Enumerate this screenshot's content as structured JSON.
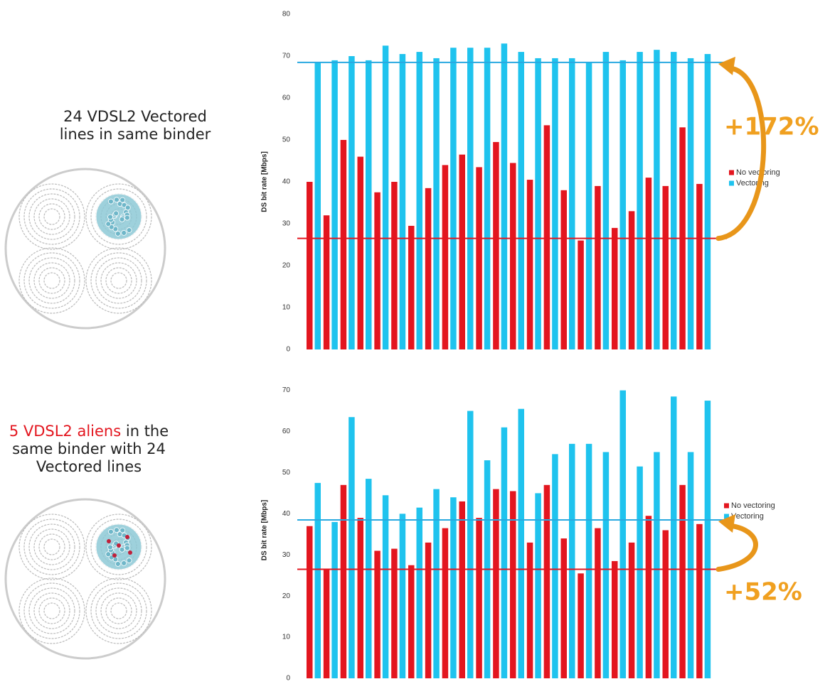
{
  "chart_data": [
    {
      "type": "bar",
      "caption": "24 VDSL2 Vectored lines in same binder",
      "y_label": "DS bit rate [Mbps]",
      "categories": [
        null,
        null,
        null,
        null,
        null,
        null,
        null,
        null,
        null,
        null,
        null,
        null,
        null,
        null,
        null,
        null,
        null,
        null,
        null,
        null,
        null,
        null,
        null,
        null
      ],
      "series": [
        {
          "name": "No vectoring",
          "color": "#e3161f",
          "values": [
            40,
            32,
            50,
            46,
            37.5,
            40,
            29.5,
            38.5,
            44,
            46.5,
            43.5,
            49.5,
            44.5,
            40.5,
            53.5,
            38,
            26,
            39,
            29,
            33,
            41,
            39,
            53,
            39.5
          ]
        },
        {
          "name": "Vectoring",
          "color": "#1fc3ee",
          "values": [
            68.5,
            69,
            70,
            69,
            72.5,
            70.5,
            71,
            69.5,
            72,
            72,
            72,
            73,
            71,
            69.5,
            69.5,
            69.5,
            68.5,
            71,
            69,
            71,
            71.5,
            71,
            69.5,
            70.5
          ]
        }
      ],
      "reference_lines": [
        {
          "value": 68.5,
          "color": "#29a9e0"
        },
        {
          "value": 26.5,
          "color": "#e3161f"
        }
      ],
      "annotation": "+172%",
      "ylim": [
        0,
        80
      ],
      "yticks": [
        0,
        10,
        20,
        30,
        40,
        50,
        60,
        70,
        80
      ]
    },
    {
      "type": "bar",
      "caption_highlight": "5 VDSL2 aliens",
      "caption": "in the same binder with 24 Vectored lines",
      "y_label": "DS bit rate [Mbps]",
      "categories": [
        null,
        null,
        null,
        null,
        null,
        null,
        null,
        null,
        null,
        null,
        null,
        null,
        null,
        null,
        null,
        null,
        null,
        null,
        null,
        null,
        null,
        null,
        null,
        null
      ],
      "series": [
        {
          "name": "No vectoring",
          "color": "#e3161f",
          "values": [
            37,
            26.5,
            47,
            39,
            31,
            31.5,
            27.5,
            33,
            36.5,
            43,
            39,
            46,
            45.5,
            33,
            47,
            34,
            25.5,
            36.5,
            28.5,
            33,
            39.5,
            36,
            47,
            37.5
          ]
        },
        {
          "name": "Vectoring",
          "color": "#1fc3ee",
          "values": [
            47.5,
            38,
            63.5,
            48.5,
            44.5,
            40,
            41.5,
            46,
            44,
            65,
            53,
            61,
            65.5,
            45,
            54.5,
            57,
            57,
            55,
            70,
            51.5,
            55,
            68.5,
            55,
            67.5
          ]
        }
      ],
      "reference_lines": [
        {
          "value": 38.5,
          "color": "#29a9e0"
        },
        {
          "value": 26.5,
          "color": "#e3161f"
        }
      ],
      "annotation": "+52%",
      "ylim": [
        0,
        72
      ],
      "yticks": [
        0,
        10,
        20,
        30,
        40,
        50,
        60,
        70
      ]
    }
  ]
}
